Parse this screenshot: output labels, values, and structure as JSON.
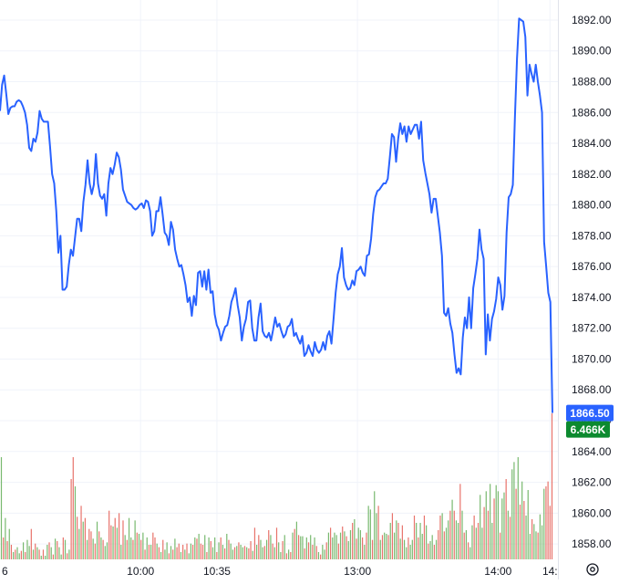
{
  "chart_data": {
    "type": "line",
    "title": "",
    "xlabel": "",
    "ylabel": "",
    "ylim": [
      1857.0,
      1893.3
    ],
    "y_ticks": [
      1858,
      1860,
      1862,
      1864,
      1866,
      1868,
      1870,
      1872,
      1874,
      1876,
      1878,
      1880,
      1882,
      1884,
      1886,
      1888,
      1890,
      1892
    ],
    "y_tick_labels": [
      "1858.00",
      "1860.00",
      "1862.00",
      "1864.00",
      "1866.00",
      "1868.00",
      "1870.00",
      "1872.00",
      "1874.00",
      "1876.00",
      "1878.00",
      "1880.00",
      "1882.00",
      "1884.00",
      "1886.00",
      "1888.00",
      "1890.00",
      "1892.00"
    ],
    "x_ticks": [
      0,
      46,
      71,
      117,
      163,
      180
    ],
    "x_tick_labels": [
      "6",
      "10:00",
      "10:35",
      "13:00",
      "14:00",
      "14:"
    ],
    "x_range": [
      0,
      182
    ],
    "grid": true,
    "series": [
      {
        "color": "#2962ff",
        "values": [
          1886.1,
          1887.8,
          1888.4,
          1887.2,
          1885.9,
          1886.3,
          1886.4,
          1886.4,
          1886.7,
          1886.8,
          1886.7,
          1886.4,
          1886.0,
          1885.2,
          1883.7,
          1883.5,
          1884.3,
          1884.1,
          1884.7,
          1886.1,
          1885.6,
          1885.4,
          1885.4,
          1885.4,
          1883.8,
          1882.0,
          1881.4,
          1879.6,
          1876.9,
          1878.0,
          1874.5,
          1874.5,
          1874.7,
          1876.1,
          1877.1,
          1876.7,
          1877.9,
          1879.1,
          1879.1,
          1878.3,
          1880.2,
          1881.3,
          1882.9,
          1881.4,
          1880.7,
          1881.3,
          1883.3,
          1881.4,
          1880.6,
          1880.4,
          1880.7,
          1879.3,
          1881.4,
          1882.4,
          1882.0,
          1882.6,
          1883.4,
          1883.1,
          1882.3,
          1881.0,
          1880.6,
          1880.2,
          1880.1,
          1880.0,
          1879.8,
          1879.7,
          1879.8,
          1880.0,
          1880.1,
          1879.8,
          1880.3,
          1880.2,
          1879.6,
          1878.0,
          1878.3,
          1879.6,
          1879.6,
          1880.5,
          1879.4,
          1878.2,
          1878.0,
          1877.4,
          1878.9,
          1878.4,
          1877.1,
          1876.5,
          1876.0,
          1876.1,
          1875.5,
          1874.8,
          1873.7,
          1874.0,
          1872.8,
          1874.1,
          1873.5,
          1875.6,
          1875.7,
          1874.7,
          1875.7,
          1874.5,
          1875.8,
          1874.3,
          1874.4,
          1872.9,
          1872.2,
          1871.9,
          1871.2,
          1871.7,
          1872.1,
          1872.2,
          1872.8,
          1873.7,
          1874.1,
          1874.6,
          1873.5,
          1872.7,
          1871.2,
          1872.1,
          1872.6,
          1873.7,
          1873.8,
          1872.0,
          1871.2,
          1871.2,
          1872.7,
          1873.6,
          1871.8,
          1871.5,
          1871.4,
          1871.7,
          1871.2,
          1871.9,
          1872.7,
          1872.1,
          1872.3,
          1871.8,
          1871.4,
          1871.6,
          1872.1,
          1872.2,
          1872.6,
          1871.5,
          1871.7,
          1871.3,
          1871.0,
          1871.5,
          1870.2,
          1870.4,
          1870.9,
          1870.5,
          1870.2,
          1871.1,
          1870.6,
          1870.4,
          1870.6,
          1871.1,
          1870.6,
          1871.5,
          1871.8,
          1871.0,
          1872.6,
          1874.3,
          1875.5,
          1876.0,
          1877.2,
          1875.3,
          1874.8,
          1874.5,
          1874.6,
          1875.1,
          1874.8,
          1875.7,
          1875.8,
          1876.0,
          1875.6,
          1875.4,
          1876.7,
          1876.8,
          1877.8,
          1879.4,
          1880.5,
          1880.9,
          1881.0,
          1881.2,
          1881.4,
          1881.4,
          1881.7,
          1883.1,
          1884.6,
          1884.4,
          1882.8,
          1884.3,
          1885.3,
          1884.6,
          1885.1,
          1884.1,
          1885.1,
          1884.6,
          1884.9,
          1885.2,
          1885.2,
          1884.3,
          1885.4,
          1882.9,
          1882.1,
          1881.4,
          1880.7,
          1879.5,
          1880.4,
          1880.4,
          1879.3,
          1878.2,
          1876.7,
          1873.0,
          1872.8,
          1873.3,
          1872.3,
          1871.7,
          1870.3,
          1869.1,
          1869.4,
          1869.0,
          1871.4,
          1872.7,
          1872.0,
          1874.0,
          1872.0,
          1874.6,
          1875.5,
          1876.5,
          1878.4,
          1877.1,
          1876.5,
          1870.3,
          1872.9,
          1871.2,
          1872.6,
          1873.1,
          1873.9,
          1875.3,
          1874.8,
          1873.2,
          1874.1,
          1878.2,
          1880.5,
          1880.7,
          1881.3,
          1885.7,
          1889.5,
          1892.1,
          1892.0,
          1891.9,
          1890.9,
          1887.1,
          1889.1,
          1888.5,
          1888.0,
          1889.1,
          1888.0,
          1887.1,
          1886.0,
          1877.6,
          1876.0,
          1874.3,
          1873.7,
          1866.5
        ]
      }
    ],
    "volume": {
      "up_color": "#78b96f",
      "down_color": "#e8736b",
      "values": [
        84,
        18,
        34,
        15,
        25,
        12,
        6,
        8,
        10,
        5,
        7,
        14,
        6,
        16,
        11,
        25,
        8,
        13,
        10,
        8,
        3,
        8,
        3,
        12,
        14,
        10,
        4,
        17,
        15,
        10,
        4,
        18,
        16,
        5,
        8,
        66,
        84,
        60,
        35,
        25,
        44,
        31,
        34,
        16,
        25,
        23,
        17,
        13,
        31,
        23,
        18,
        16,
        11,
        14,
        40,
        28,
        27,
        34,
        26,
        38,
        12,
        32,
        20,
        16,
        34,
        18,
        16,
        32,
        22,
        21,
        16,
        22,
        8,
        18,
        12,
        12,
        22,
        18,
        13,
        10,
        6,
        16,
        8,
        14,
        5,
        11,
        8,
        17,
        10,
        13,
        6,
        12,
        8,
        13,
        5,
        13,
        12,
        18,
        17,
        21,
        13,
        12,
        20,
        6,
        18,
        15,
        10,
        18,
        6,
        14,
        18,
        12,
        9,
        21,
        16,
        13,
        8,
        10,
        11,
        14,
        12,
        10,
        11,
        10,
        9,
        15,
        7,
        26,
        12,
        20,
        16,
        10,
        11,
        16,
        24,
        20,
        13,
        10,
        26,
        14,
        6,
        15,
        20,
        5,
        8,
        6,
        22,
        25,
        31,
        20,
        19,
        19,
        9,
        18,
        14,
        20,
        12,
        18,
        11,
        6,
        4,
        12,
        8,
        14,
        22,
        26,
        18,
        22,
        20,
        13,
        22,
        27,
        23,
        19,
        15,
        24,
        30,
        33,
        17,
        26,
        24,
        18,
        12,
        22,
        44,
        41,
        16,
        56,
        38,
        44,
        16,
        20,
        22,
        21,
        20,
        30,
        38,
        22,
        32,
        30,
        17,
        28,
        16,
        10,
        18,
        12,
        16,
        36,
        30,
        18,
        30,
        21,
        36,
        28,
        13,
        15,
        20,
        12,
        16,
        24,
        36,
        38,
        23,
        26,
        32,
        40,
        49,
        40,
        32,
        30,
        62,
        40,
        22,
        24,
        14,
        10,
        28,
        36,
        26,
        30,
        53,
        26,
        43,
        56,
        40,
        62,
        30,
        50,
        61,
        56,
        22,
        50,
        55,
        66,
        40,
        35,
        74,
        80,
        58,
        84,
        45,
        64,
        48,
        36,
        57,
        21,
        33,
        29,
        23,
        22,
        37,
        28,
        58,
        60,
        64,
        44,
        120
      ],
      "up": [
        1,
        0,
        1,
        0,
        1,
        0,
        1,
        0,
        1,
        1,
        0,
        1,
        0,
        1,
        1,
        0,
        1,
        0,
        1,
        0,
        1,
        0,
        1,
        1,
        0,
        1,
        0,
        1,
        0,
        1,
        1,
        0,
        1,
        0,
        1,
        0,
        0,
        1,
        0,
        1,
        0,
        1,
        0,
        1,
        0,
        0,
        1,
        0,
        1,
        0,
        1,
        0,
        1,
        1,
        0,
        0,
        1,
        0,
        1,
        0,
        1,
        0,
        1,
        0,
        1,
        1,
        0,
        1,
        0,
        1,
        0,
        1,
        0,
        1,
        0,
        1,
        0,
        0,
        1,
        0,
        1,
        0,
        1,
        1,
        0,
        1,
        0,
        1,
        0,
        0,
        1,
        0,
        1,
        0,
        1,
        1,
        0,
        1,
        0,
        1,
        0,
        0,
        1,
        0,
        1,
        0,
        1,
        1,
        0,
        1,
        0,
        1,
        0,
        1,
        0,
        1,
        1,
        0,
        1,
        0,
        1,
        1,
        0,
        1,
        0,
        0,
        1,
        0,
        1,
        0,
        1,
        1,
        0,
        1,
        0,
        1,
        0,
        1,
        0,
        1,
        1,
        0,
        1,
        0,
        1,
        0,
        1,
        0,
        1,
        0,
        1,
        1,
        0,
        1,
        0,
        1,
        0,
        1,
        0,
        1,
        0,
        1,
        1,
        0,
        1,
        0,
        1,
        1,
        1,
        0,
        1,
        0,
        1,
        0,
        1,
        1,
        0,
        1,
        0,
        1,
        1,
        0,
        1,
        0,
        1,
        1,
        0,
        1,
        1,
        0,
        1,
        0,
        1,
        1,
        0,
        1,
        0,
        1,
        1,
        0,
        1,
        0,
        1,
        1,
        0,
        1,
        1,
        0,
        1,
        0,
        1,
        1,
        0,
        1,
        0,
        1,
        1,
        0,
        1,
        0,
        0,
        1,
        0,
        1,
        1,
        0,
        1,
        0,
        1,
        1,
        0,
        1,
        0,
        1,
        0,
        1,
        1,
        0,
        1,
        0,
        1,
        1,
        0,
        1,
        0,
        1,
        1,
        0,
        1,
        1,
        0,
        1,
        1,
        0,
        1,
        0,
        1,
        1,
        0,
        1,
        0,
        1,
        0,
        1,
        1,
        1,
        0,
        1,
        1,
        0,
        1,
        1,
        1
      ]
    },
    "last_price": {
      "label": "1866.50",
      "color": "#2962ff"
    },
    "last_volume": {
      "label": "6.466K",
      "color": "#0c8a2f"
    }
  },
  "settings_icon": "gear-icon"
}
